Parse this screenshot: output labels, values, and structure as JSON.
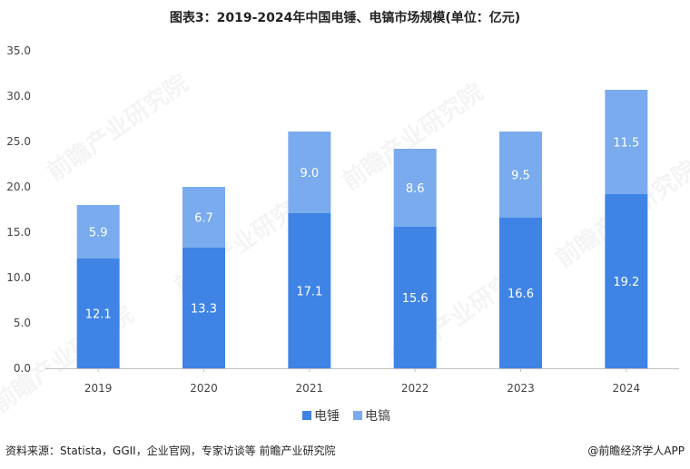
{
  "chart_data": {
    "type": "bar",
    "stacked": true,
    "title": "图表3：2019-2024年中国电锤、电镐市场规模(单位：亿元)",
    "categories": [
      "2019",
      "2020",
      "2021",
      "2022",
      "2023",
      "2024"
    ],
    "series": [
      {
        "name": "电锤",
        "values": [
          12.1,
          13.3,
          17.1,
          15.6,
          16.6,
          19.2
        ],
        "color": "#3F84E5"
      },
      {
        "name": "电镐",
        "values": [
          5.9,
          6.7,
          9.0,
          8.6,
          9.5,
          11.5
        ],
        "color": "#79ABEE"
      }
    ],
    "ylim": [
      0,
      35
    ],
    "yticks": [
      "0.0",
      "5.0",
      "10.0",
      "15.0",
      "20.0",
      "25.0",
      "30.0",
      "35.0"
    ],
    "grid": false,
    "legend": "bottom-center",
    "xlabel": "",
    "ylabel": ""
  },
  "footer": {
    "source": "资料来源：Statista，GGII，企业官网，专家访谈等 前瞻产业研究院",
    "brand": "@前瞻经济学人APP"
  },
  "watermark": {
    "text": "前瞻产业研究院"
  }
}
